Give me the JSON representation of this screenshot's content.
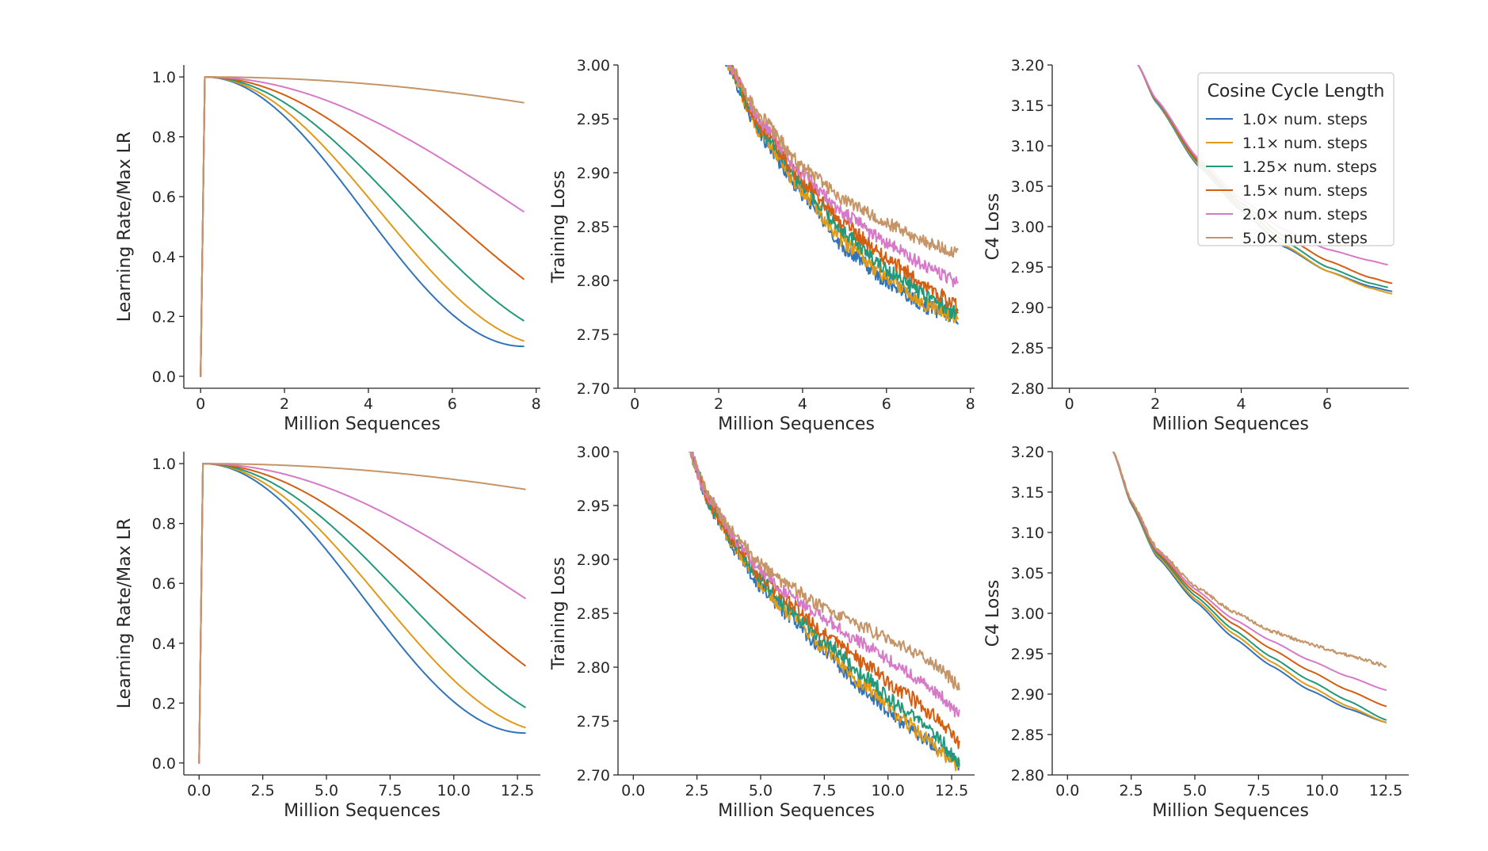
{
  "colors": {
    "1.0": "#3274b8",
    "1.1": "#e19a18",
    "1.25": "#22997a",
    "1.5": "#d45f12",
    "2.0": "#d67ac8",
    "5.0": "#c59467"
  },
  "legend": {
    "title": "Cosine Cycle Length",
    "entries": [
      {
        "key": "1.0",
        "label": "1.0× num. steps"
      },
      {
        "key": "1.1",
        "label": "1.1× num. steps"
      },
      {
        "key": "1.25",
        "label": "1.25× num. steps"
      },
      {
        "key": "1.5",
        "label": "1.5× num. steps"
      },
      {
        "key": "2.0",
        "label": "2.0× num. steps"
      },
      {
        "key": "5.0",
        "label": "5.0× num. steps"
      }
    ]
  },
  "chart_data": [
    {
      "id": "lr-top",
      "type": "line",
      "kind": "lr",
      "xlabel": "Million Sequences",
      "ylabel": "Learning Rate/Max LR",
      "xlim": [
        -0.4,
        8.1
      ],
      "ylim": [
        -0.04,
        1.04
      ],
      "xticks": [
        0,
        2,
        4,
        6,
        8
      ],
      "xtick_labels": [
        "0",
        "2",
        "4",
        "6",
        "8"
      ],
      "yticks": [
        0.0,
        0.2,
        0.4,
        0.6,
        0.8,
        1.0
      ],
      "ytick_labels": [
        "0.0",
        "0.2",
        "0.4",
        "0.6",
        "0.8",
        "1.0"
      ],
      "x_end": 7.7,
      "warmup": 0.1,
      "series": [
        {
          "key": "1.0",
          "cycle": 1.0
        },
        {
          "key": "1.1",
          "cycle": 1.1
        },
        {
          "key": "1.25",
          "cycle": 1.25
        },
        {
          "key": "1.5",
          "cycle": 1.5
        },
        {
          "key": "2.0",
          "cycle": 2.0
        },
        {
          "key": "5.0",
          "cycle": 5.0
        }
      ]
    },
    {
      "id": "train-top",
      "type": "line",
      "kind": "loss",
      "xlabel": "Million Sequences",
      "ylabel": "Training Loss",
      "xlim": [
        -0.4,
        8.1
      ],
      "ylim": [
        2.7,
        3.0
      ],
      "xticks": [
        0,
        2,
        4,
        6,
        8
      ],
      "xtick_labels": [
        "0",
        "2",
        "4",
        "6",
        "8"
      ],
      "yticks": [
        2.7,
        2.75,
        2.8,
        2.85,
        2.9,
        2.95,
        3.0
      ],
      "ytick_labels": [
        "2.70",
        "2.75",
        "2.80",
        "2.85",
        "2.90",
        "2.95",
        "3.00"
      ],
      "series": [
        {
          "key": "1.0",
          "x": [
            2.1,
            3,
            4,
            5,
            6,
            7,
            7.7
          ],
          "y": [
            3.01,
            2.935,
            2.88,
            2.83,
            2.8,
            2.775,
            2.765
          ],
          "noise": 0.007
        },
        {
          "key": "1.1",
          "x": [
            2.1,
            3,
            4,
            5,
            6,
            7,
            7.7
          ],
          "y": [
            3.01,
            2.937,
            2.883,
            2.835,
            2.803,
            2.777,
            2.765
          ],
          "noise": 0.007
        },
        {
          "key": "1.25",
          "x": [
            2.1,
            3,
            4,
            5,
            6,
            7,
            7.7
          ],
          "y": [
            3.01,
            2.94,
            2.888,
            2.845,
            2.81,
            2.785,
            2.768
          ],
          "noise": 0.007
        },
        {
          "key": "1.5",
          "x": [
            2.1,
            3,
            4,
            5,
            6,
            7,
            7.7
          ],
          "y": [
            3.01,
            2.943,
            2.893,
            2.852,
            2.82,
            2.795,
            2.775
          ],
          "noise": 0.007
        },
        {
          "key": "2.0",
          "x": [
            2.1,
            3,
            4,
            5,
            6,
            7,
            7.7
          ],
          "y": [
            3.01,
            2.947,
            2.898,
            2.862,
            2.835,
            2.812,
            2.798
          ],
          "noise": 0.006
        },
        {
          "key": "5.0",
          "x": [
            2.1,
            3,
            4,
            5,
            6,
            7,
            7.7
          ],
          "y": [
            3.01,
            2.952,
            2.905,
            2.874,
            2.853,
            2.835,
            2.825
          ],
          "noise": 0.006
        }
      ]
    },
    {
      "id": "c4-top",
      "type": "line",
      "kind": "loss",
      "xlabel": "Million Sequences",
      "ylabel": "C4 Loss",
      "xlim": [
        -0.4,
        7.9
      ],
      "ylim": [
        2.8,
        3.2
      ],
      "xticks": [
        0,
        2,
        4,
        6
      ],
      "xtick_labels": [
        "0",
        "2",
        "4",
        "6"
      ],
      "yticks": [
        2.8,
        2.85,
        2.9,
        2.95,
        3.0,
        3.05,
        3.1,
        3.15,
        3.2
      ],
      "ytick_labels": [
        "2.80",
        "2.85",
        "2.90",
        "2.95",
        "3.00",
        "3.05",
        "3.10",
        "3.15",
        "3.20"
      ],
      "series": [
        {
          "key": "1.0",
          "x": [
            1.6,
            2,
            3,
            4,
            5,
            6,
            7,
            7.5
          ],
          "y": [
            3.2,
            3.155,
            3.075,
            3.02,
            2.975,
            2.945,
            2.926,
            2.92
          ],
          "noise": 0
        },
        {
          "key": "1.1",
          "x": [
            1.6,
            2,
            3,
            4,
            5,
            6,
            7,
            7.5
          ],
          "y": [
            3.2,
            3.156,
            3.077,
            3.022,
            2.977,
            2.945,
            2.924,
            2.917
          ],
          "noise": 0
        },
        {
          "key": "1.25",
          "x": [
            1.6,
            2,
            3,
            4,
            5,
            6,
            7,
            7.4
          ],
          "y": [
            3.2,
            3.157,
            3.079,
            3.025,
            2.982,
            2.95,
            2.93,
            2.925
          ],
          "noise": 0
        },
        {
          "key": "1.5",
          "x": [
            1.6,
            2,
            3,
            4,
            5,
            6,
            7,
            7.5
          ],
          "y": [
            3.2,
            3.158,
            3.081,
            3.029,
            2.988,
            2.958,
            2.937,
            2.93
          ],
          "noise": 0
        },
        {
          "key": "2.0",
          "x": [
            1.6,
            2,
            3,
            4,
            5,
            6,
            7,
            7.4
          ],
          "y": [
            3.2,
            3.159,
            3.084,
            3.034,
            2.996,
            2.972,
            2.958,
            2.953
          ],
          "noise": 0
        }
      ]
    },
    {
      "id": "lr-bottom",
      "type": "line",
      "kind": "lr",
      "xlabel": "Million Sequences",
      "ylabel": "Learning Rate/Max LR",
      "xlim": [
        -0.6,
        13.4
      ],
      "ylim": [
        -0.04,
        1.04
      ],
      "xticks": [
        0,
        2.5,
        5,
        7.5,
        10,
        12.5
      ],
      "xtick_labels": [
        "0.0",
        "2.5",
        "5.0",
        "7.5",
        "10.0",
        "12.5"
      ],
      "yticks": [
        0.0,
        0.2,
        0.4,
        0.6,
        0.8,
        1.0
      ],
      "ytick_labels": [
        "0.0",
        "0.2",
        "0.4",
        "0.6",
        "0.8",
        "1.0"
      ],
      "x_end": 12.8,
      "warmup": 0.15,
      "series": [
        {
          "key": "1.0",
          "cycle": 1.0
        },
        {
          "key": "1.1",
          "cycle": 1.1
        },
        {
          "key": "1.25",
          "cycle": 1.25
        },
        {
          "key": "1.5",
          "cycle": 1.5
        },
        {
          "key": "2.0",
          "cycle": 2.0
        },
        {
          "key": "5.0",
          "cycle": 5.0
        }
      ]
    },
    {
      "id": "train-bottom",
      "type": "line",
      "kind": "loss",
      "xlabel": "Million Sequences",
      "ylabel": "Training Loss",
      "xlim": [
        -0.6,
        13.4
      ],
      "ylim": [
        2.7,
        3.0
      ],
      "xticks": [
        0,
        2.5,
        5,
        7.5,
        10,
        12.5
      ],
      "xtick_labels": [
        "0.0",
        "2.5",
        "5.0",
        "7.5",
        "10.0",
        "12.5"
      ],
      "yticks": [
        2.7,
        2.75,
        2.8,
        2.85,
        2.9,
        2.95,
        3.0
      ],
      "ytick_labels": [
        "2.70",
        "2.75",
        "2.80",
        "2.85",
        "2.90",
        "2.95",
        "3.00"
      ],
      "series": [
        {
          "key": "1.0",
          "x": [
            2.2,
            3,
            4,
            5,
            6,
            7.5,
            9,
            10.5,
            12,
            12.8
          ],
          "y": [
            3.0,
            2.95,
            2.91,
            2.875,
            2.85,
            2.815,
            2.78,
            2.75,
            2.725,
            2.71
          ],
          "noise": 0.007
        },
        {
          "key": "1.1",
          "x": [
            2.2,
            3,
            4,
            5,
            6,
            7.5,
            9,
            10.5,
            12,
            12.8
          ],
          "y": [
            3.0,
            2.951,
            2.912,
            2.878,
            2.853,
            2.818,
            2.785,
            2.753,
            2.723,
            2.708
          ],
          "noise": 0.007
        },
        {
          "key": "1.25",
          "x": [
            2.2,
            3,
            4,
            5,
            6,
            7.5,
            9,
            10.5,
            12,
            12.8
          ],
          "y": [
            3.0,
            2.952,
            2.914,
            2.881,
            2.857,
            2.824,
            2.793,
            2.763,
            2.733,
            2.712
          ],
          "noise": 0.007
        },
        {
          "key": "1.5",
          "x": [
            2.2,
            3,
            4,
            5,
            6,
            7.5,
            9,
            10.5,
            12,
            12.8
          ],
          "y": [
            3.0,
            2.953,
            2.916,
            2.884,
            2.862,
            2.832,
            2.805,
            2.778,
            2.752,
            2.73
          ],
          "noise": 0.007
        },
        {
          "key": "2.0",
          "x": [
            2.2,
            3,
            4,
            5,
            6,
            7.5,
            9,
            10.5,
            12,
            12.8
          ],
          "y": [
            3.0,
            2.954,
            2.919,
            2.889,
            2.869,
            2.845,
            2.822,
            2.8,
            2.775,
            2.755
          ],
          "noise": 0.006
        },
        {
          "key": "5.0",
          "x": [
            2.2,
            3,
            4,
            5,
            6,
            7.5,
            9,
            10.5,
            12,
            12.8
          ],
          "y": [
            3.0,
            2.956,
            2.922,
            2.895,
            2.877,
            2.855,
            2.837,
            2.82,
            2.8,
            2.782
          ],
          "noise": 0.006
        }
      ]
    },
    {
      "id": "c4-bottom",
      "type": "line",
      "kind": "loss",
      "xlabel": "Million Sequences",
      "ylabel": "C4 Loss",
      "xlim": [
        -0.6,
        13.4
      ],
      "ylim": [
        2.8,
        3.2
      ],
      "xticks": [
        0,
        2.5,
        5,
        7.5,
        10,
        12.5
      ],
      "xtick_labels": [
        "0.0",
        "2.5",
        "5.0",
        "7.5",
        "10.0",
        "12.5"
      ],
      "yticks": [
        2.8,
        2.85,
        2.9,
        2.95,
        3.0,
        3.05,
        3.1,
        3.15,
        3.2
      ],
      "ytick_labels": [
        "2.80",
        "2.85",
        "2.90",
        "2.95",
        "3.00",
        "3.05",
        "3.10",
        "3.15",
        "3.20"
      ],
      "series": [
        {
          "key": "1.0",
          "x": [
            1.8,
            2.5,
            3.5,
            5,
            6.5,
            8,
            9.5,
            11,
            12.5
          ],
          "y": [
            3.2,
            3.135,
            3.07,
            3.015,
            2.97,
            2.935,
            2.905,
            2.882,
            2.865
          ],
          "noise": 0
        },
        {
          "key": "1.1",
          "x": [
            1.8,
            2.5,
            3.5,
            5,
            6.5,
            8,
            9.5,
            11,
            12.5
          ],
          "y": [
            3.2,
            3.136,
            3.072,
            3.018,
            2.975,
            2.94,
            2.91,
            2.885,
            2.865
          ],
          "noise": 0
        },
        {
          "key": "1.25",
          "x": [
            1.8,
            2.5,
            3.5,
            5,
            6.5,
            8,
            9.5,
            11,
            12.5
          ],
          "y": [
            3.2,
            3.137,
            3.074,
            3.022,
            2.98,
            2.946,
            2.917,
            2.892,
            2.868
          ],
          "noise": 0
        },
        {
          "key": "1.5",
          "x": [
            1.8,
            2.5,
            3.5,
            5,
            6.5,
            8,
            9.5,
            11,
            12.5
          ],
          "y": [
            3.2,
            3.138,
            3.076,
            3.026,
            2.987,
            2.956,
            2.929,
            2.905,
            2.885
          ],
          "noise": 0
        },
        {
          "key": "2.0",
          "x": [
            1.8,
            2.5,
            3.5,
            5,
            6.5,
            8,
            9.5,
            11,
            12.5
          ],
          "y": [
            3.2,
            3.139,
            3.078,
            3.03,
            2.993,
            2.966,
            2.942,
            2.922,
            2.905
          ],
          "noise": 0
        },
        {
          "key": "5.0",
          "x": [
            1.8,
            2.5,
            3.5,
            5,
            6.5,
            8,
            9.5,
            11,
            12.5
          ],
          "y": [
            3.2,
            3.14,
            3.08,
            3.034,
            3.002,
            2.978,
            2.962,
            2.948,
            2.935
          ],
          "noise": 0.002
        }
      ]
    }
  ]
}
